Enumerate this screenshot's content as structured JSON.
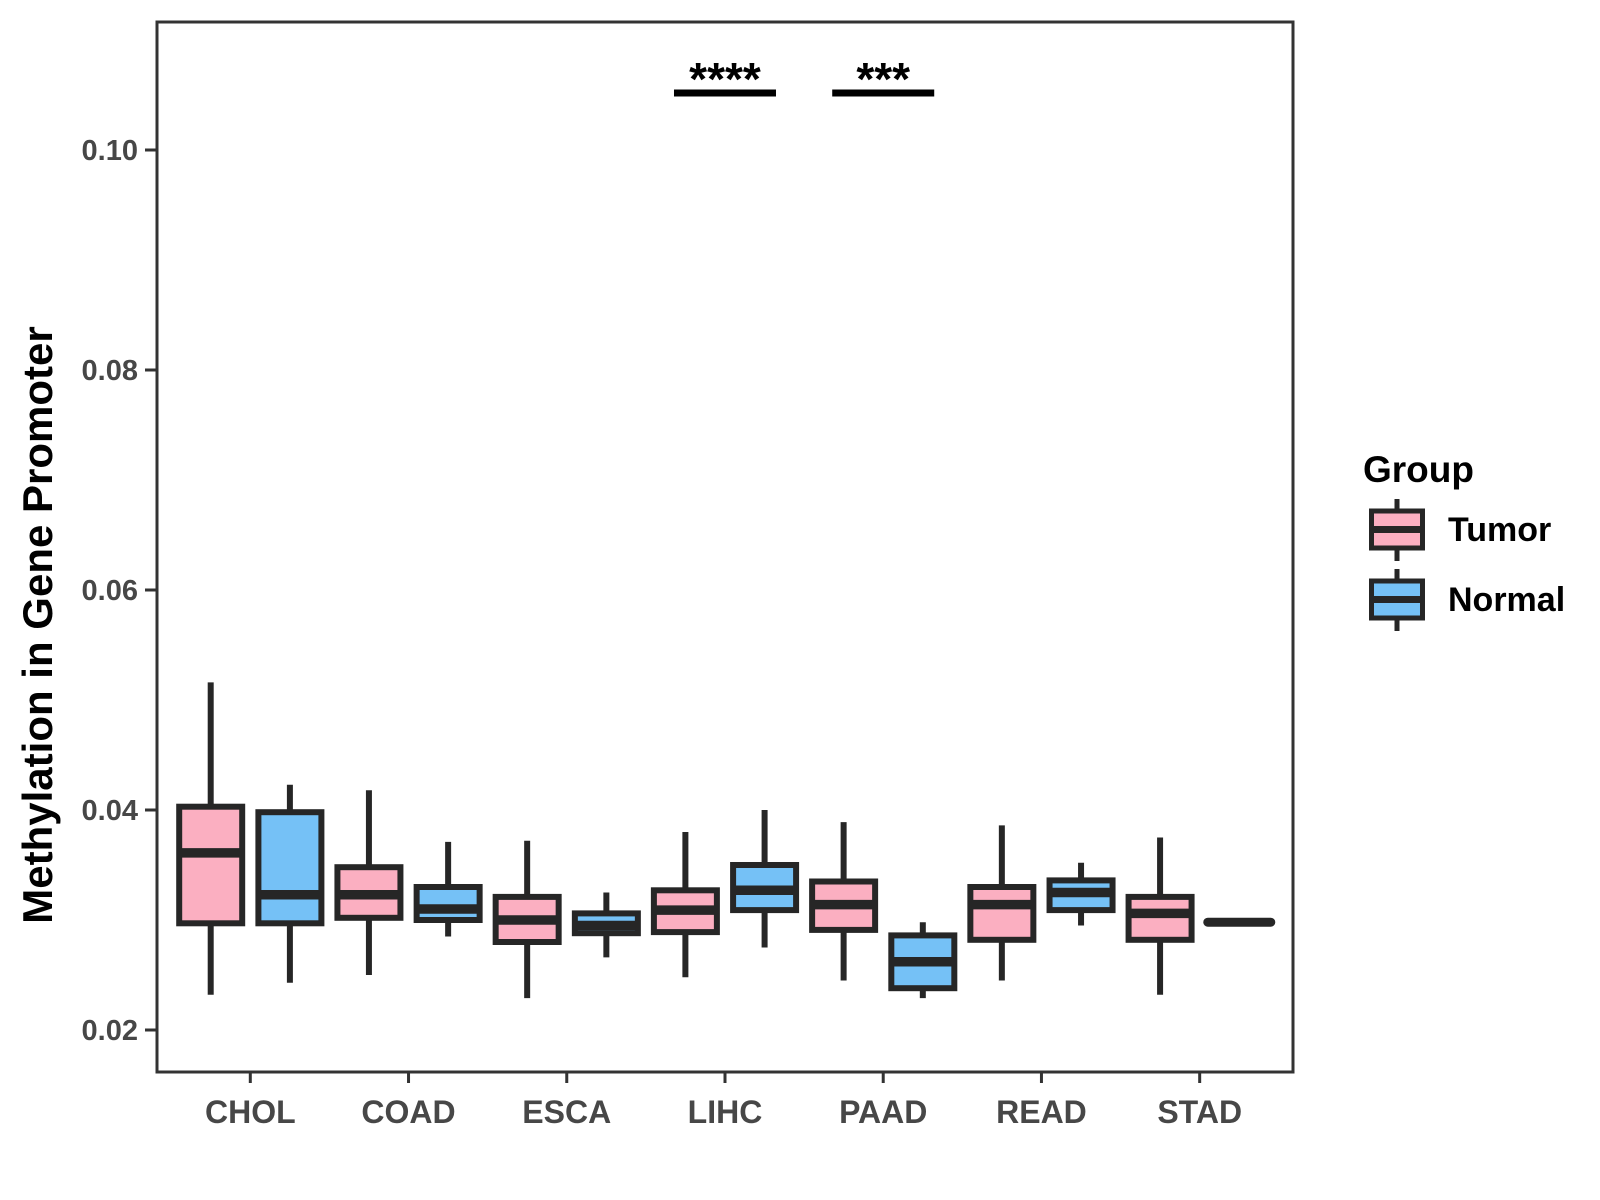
{
  "figure": {
    "y_axis_title": "Methylation in Gene Promoter",
    "legend": {
      "title": "Group",
      "items": [
        {
          "label": "Tumor",
          "color": "#FBAFC1"
        },
        {
          "label": "Normal",
          "color": "#75C1F6"
        }
      ]
    }
  },
  "style": {
    "background": "#ffffff",
    "panel_border": "#333333",
    "box_stroke": "#262626",
    "tick_color": "#333333",
    "tick_label_color": "#474747",
    "annotation_color": "#000000"
  },
  "chart_data": {
    "type": "grouped_boxplot",
    "title": "",
    "xlabel": "",
    "ylabel": "Methylation in Gene Promoter",
    "categories": [
      "CHOL",
      "COAD",
      "ESCA",
      "LIHC",
      "PAAD",
      "READ",
      "STAD"
    ],
    "y_ticks": [
      0.02,
      0.04,
      0.06,
      0.08,
      0.1
    ],
    "y_tick_labels": [
      "0.02",
      "0.04",
      "0.06",
      "0.08",
      "0.10"
    ],
    "ylim": [
      0.016,
      0.112
    ],
    "grid": false,
    "legend_position": "right",
    "series": [
      {
        "name": "Tumor",
        "color": "#FBAFC1",
        "boxes": [
          {
            "category": "CHOL",
            "whisker_low": 0.0232,
            "q1": 0.0297,
            "median": 0.0361,
            "q3": 0.0403,
            "whisker_high": 0.0516
          },
          {
            "category": "COAD",
            "whisker_low": 0.025,
            "q1": 0.0302,
            "median": 0.0323,
            "q3": 0.0348,
            "whisker_high": 0.0418
          },
          {
            "category": "ESCA",
            "whisker_low": 0.0229,
            "q1": 0.028,
            "median": 0.03,
            "q3": 0.0321,
            "whisker_high": 0.0372
          },
          {
            "category": "LIHC",
            "whisker_low": 0.0248,
            "q1": 0.0289,
            "median": 0.0309,
            "q3": 0.0327,
            "whisker_high": 0.038
          },
          {
            "category": "PAAD",
            "whisker_low": 0.0245,
            "q1": 0.0291,
            "median": 0.0314,
            "q3": 0.0335,
            "whisker_high": 0.0389
          },
          {
            "category": "READ",
            "whisker_low": 0.0245,
            "q1": 0.0282,
            "median": 0.0314,
            "q3": 0.033,
            "whisker_high": 0.0386
          },
          {
            "category": "STAD",
            "whisker_low": 0.0232,
            "q1": 0.0282,
            "median": 0.0306,
            "q3": 0.0321,
            "whisker_high": 0.0375
          }
        ]
      },
      {
        "name": "Normal",
        "color": "#75C1F6",
        "boxes": [
          {
            "category": "CHOL",
            "whisker_low": 0.0243,
            "q1": 0.0297,
            "median": 0.0323,
            "q3": 0.0398,
            "whisker_high": 0.0423
          },
          {
            "category": "COAD",
            "whisker_low": 0.0285,
            "q1": 0.03,
            "median": 0.031,
            "q3": 0.033,
            "whisker_high": 0.0371
          },
          {
            "category": "ESCA",
            "whisker_low": 0.0266,
            "q1": 0.0288,
            "median": 0.0295,
            "q3": 0.0306,
            "whisker_high": 0.0325
          },
          {
            "category": "LIHC",
            "whisker_low": 0.0275,
            "q1": 0.0309,
            "median": 0.0327,
            "q3": 0.035,
            "whisker_high": 0.04
          },
          {
            "category": "PAAD",
            "whisker_low": 0.0229,
            "q1": 0.0238,
            "median": 0.0262,
            "q3": 0.0286,
            "whisker_high": 0.0298
          },
          {
            "category": "READ",
            "whisker_low": 0.0295,
            "q1": 0.0309,
            "median": 0.0325,
            "q3": 0.0336,
            "whisker_high": 0.0352
          },
          {
            "category": "STAD",
            "whisker_low": 0.0298,
            "q1": 0.0298,
            "median": 0.0298,
            "q3": 0.0298,
            "whisker_high": 0.0298
          }
        ]
      }
    ],
    "annotations": [
      {
        "category": "LIHC",
        "label": "****"
      },
      {
        "category": "PAAD",
        "label": "***"
      }
    ]
  }
}
